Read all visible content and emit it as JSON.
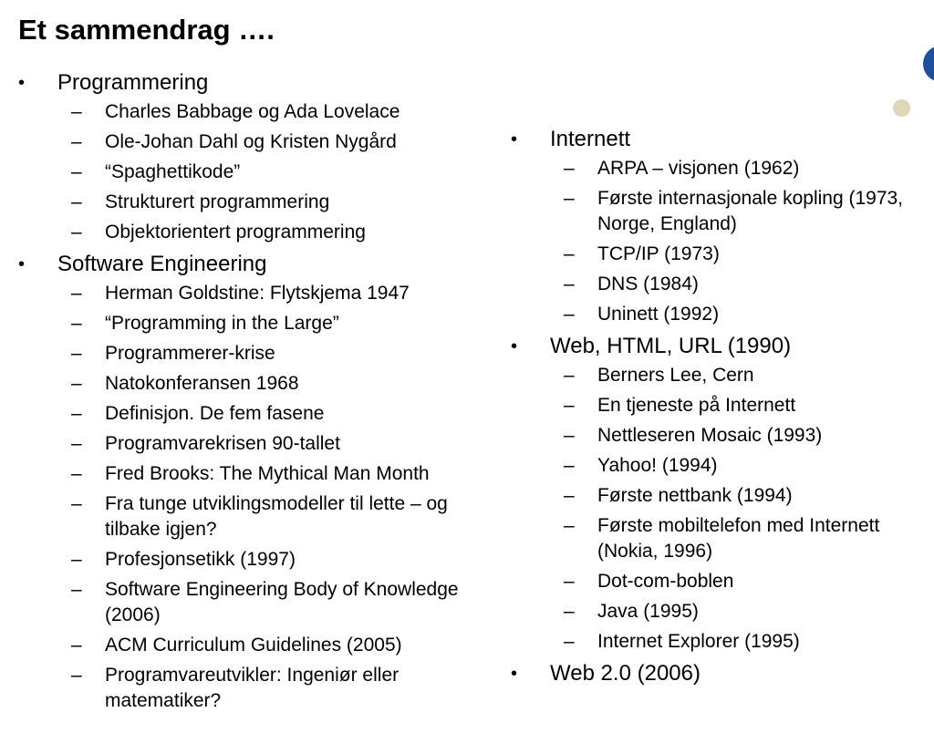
{
  "title": "Et sammendrag ….",
  "bullet_glyph": "•",
  "dash_glyph": "–",
  "left_column": [
    {
      "label": "Programmering",
      "items": [
        "Charles Babbage og Ada Lovelace",
        "Ole-Johan Dahl og Kristen Nygård",
        "“Spaghettikode”",
        "Strukturert programmering",
        "Objektorientert programmering"
      ]
    },
    {
      "label": "Software Engineering",
      "items": [
        "Herman Goldstine: Flytskjema 1947",
        "“Programming in the Large”",
        "Programmerer-krise",
        "Natokonferansen 1968",
        "Definisjon. De fem fasene",
        "Programvarekrisen 90-tallet",
        "Fred Brooks: The Mythical Man Month",
        "Fra tunge utviklingsmodeller til lette – og tilbake igjen?",
        "Profesjonsetikk (1997)",
        "Software Engineering Body of Knowledge (2006)",
        "ACM Curriculum Guidelines (2005)",
        "Programvareutvikler: Ingeniør eller matematiker?"
      ]
    }
  ],
  "right_column": [
    {
      "label": "Internett",
      "items": [
        "ARPA – visjonen (1962)",
        "Første internasjonale kopling (1973, Norge, England)",
        "TCP/IP (1973)",
        "DNS (1984)",
        "Uninett (1992)"
      ]
    },
    {
      "label": "Web, HTML, URL (1990)",
      "items": [
        "Berners Lee, Cern",
        "En tjeneste på Internett",
        "Nettleseren Mosaic (1993)",
        "Yahoo! (1994)",
        "Første nettbank (1994)",
        "Første mobiltelefon med Internett (Nokia, 1996)",
        "Dot-com-boblen",
        "Java (1995)",
        "Internet Explorer (1995)"
      ]
    },
    {
      "label": "Web 2.0 (2006)",
      "items": []
    }
  ],
  "decor_colors": {
    "blue": "#1f4e9a",
    "tan": "#ddd6b7"
  }
}
